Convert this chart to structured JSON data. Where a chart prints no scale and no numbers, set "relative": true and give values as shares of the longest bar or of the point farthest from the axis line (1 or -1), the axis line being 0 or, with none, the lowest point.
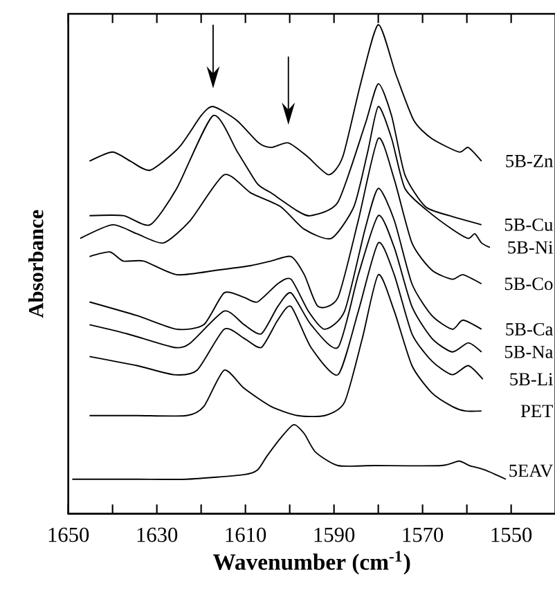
{
  "chart_data": {
    "type": "line",
    "xlabel": "Wavenumber (cm$^{-1}$)",
    "ylabel": "Absorbance",
    "relative": true,
    "legend": false,
    "marker": "none",
    "xlim": [
      1650,
      1540
    ],
    "xticks": [
      1650,
      {
        "value": 1640,
        "label": null
      },
      1630,
      {
        "value": 1620,
        "label": null
      },
      1610,
      {
        "value": 1600,
        "label": null
      },
      1590,
      {
        "value": 1580,
        "label": null
      },
      1570,
      {
        "value": 1560,
        "label": null
      },
      1550
    ],
    "series": [
      {
        "name": "5B-Zn",
        "color": "#000000",
        "x": [
          1645.2,
          1640,
          1636,
          1631.5,
          1625,
          1620,
          1617.3,
          1612,
          1607,
          1604.2,
          1600.3,
          1596,
          1591.2,
          1588,
          1584,
          1580,
          1576,
          1572,
          1568,
          1561.8,
          1559.7,
          1556.7
        ],
        "values": [
          0.7,
          0.72,
          0.7,
          0.68,
          0.73,
          0.8,
          0.82,
          0.79,
          0.74,
          0.73,
          0.74,
          0.71,
          0.67,
          0.71,
          0.87,
          1.0,
          0.89,
          0.79,
          0.75,
          0.72,
          0.73,
          0.7
        ]
      },
      {
        "name": "5B-Cu",
        "color": "#000000",
        "x": [
          1645.2,
          1637.6,
          1631.5,
          1625.5,
          1617.3,
          1611.8,
          1607.3,
          1604.2,
          1598.2,
          1595.2,
          1589.1,
          1583,
          1580,
          1577,
          1574,
          1569.4,
          1564,
          1556.7
        ],
        "values": [
          0.58,
          0.58,
          0.56,
          0.64,
          0.8,
          0.72,
          0.65,
          0.63,
          0.59,
          0.58,
          0.61,
          0.78,
          0.87,
          0.8,
          0.67,
          0.6,
          0.58,
          0.56
        ]
      },
      {
        "name": "5B-Ni",
        "color": "#000000",
        "x": [
          1647.3,
          1640,
          1634.5,
          1628.5,
          1622.4,
          1614.8,
          1608.8,
          1602.1,
          1596.7,
          1590.6,
          1585.5,
          1582.4,
          1580,
          1577,
          1574,
          1568.8,
          1563.3,
          1559.7,
          1558.2,
          1556.7,
          1554.8
        ],
        "values": [
          0.53,
          0.56,
          0.54,
          0.52,
          0.57,
          0.67,
          0.63,
          0.6,
          0.55,
          0.53,
          0.6,
          0.72,
          0.82,
          0.75,
          0.64,
          0.59,
          0.55,
          0.53,
          0.54,
          0.52,
          0.51
        ]
      },
      {
        "name": "5B-Co",
        "color": "#000000",
        "x": [
          1645.2,
          1640.6,
          1637.6,
          1633,
          1625.5,
          1616.4,
          1608.8,
          1604.2,
          1599.7,
          1596.7,
          1593.6,
          1589.1,
          1584.5,
          1580,
          1576.4,
          1572.4,
          1567.9,
          1563.3,
          1560.9,
          1556.7
        ],
        "values": [
          0.49,
          0.5,
          0.48,
          0.48,
          0.45,
          0.46,
          0.47,
          0.48,
          0.49,
          0.45,
          0.38,
          0.4,
          0.57,
          0.75,
          0.66,
          0.52,
          0.46,
          0.44,
          0.45,
          0.43
        ]
      },
      {
        "name": "5B-Ca",
        "color": "#000000",
        "x": [
          1645.2,
          1634.5,
          1625.5,
          1619.4,
          1614.8,
          1610.3,
          1607.3,
          1602.7,
          1599.7,
          1595.8,
          1592.1,
          1587.6,
          1583,
          1580,
          1576.4,
          1572.4,
          1567.9,
          1563.3,
          1560.9,
          1556.7
        ],
        "values": [
          0.39,
          0.36,
          0.33,
          0.34,
          0.41,
          0.4,
          0.39,
          0.43,
          0.44,
          0.37,
          0.33,
          0.37,
          0.55,
          0.64,
          0.57,
          0.43,
          0.36,
          0.33,
          0.35,
          0.33
        ]
      },
      {
        "name": "5B-Na",
        "color": "#000000",
        "x": [
          1645.2,
          1636.7,
          1626.1,
          1622.4,
          1614.8,
          1610.3,
          1606.4,
          1602.7,
          1599.7,
          1595.2,
          1589.1,
          1584.5,
          1580,
          1576.4,
          1572.4,
          1567.9,
          1563.3,
          1559.7,
          1556.7
        ],
        "values": [
          0.34,
          0.32,
          0.29,
          0.3,
          0.37,
          0.34,
          0.32,
          0.38,
          0.41,
          0.34,
          0.29,
          0.45,
          0.58,
          0.51,
          0.38,
          0.31,
          0.28,
          0.3,
          0.28
        ]
      },
      {
        "name": "5B-Li",
        "color": "#000000",
        "x": [
          1645.2,
          1634.5,
          1626.1,
          1620.9,
          1614.8,
          1610.3,
          1606.4,
          1602.7,
          1599.7,
          1595.2,
          1589.1,
          1584.5,
          1580,
          1576.4,
          1572.4,
          1567.9,
          1563.3,
          1559.7,
          1556.4
        ],
        "values": [
          0.27,
          0.25,
          0.23,
          0.24,
          0.33,
          0.31,
          0.29,
          0.35,
          0.38,
          0.29,
          0.23,
          0.37,
          0.52,
          0.45,
          0.32,
          0.26,
          0.23,
          0.25,
          0.22
        ]
      },
      {
        "name": "PET",
        "color": "#000000",
        "x": [
          1645.2,
          1634.5,
          1623.3,
          1619.4,
          1614.8,
          1610.3,
          1604.2,
          1598.2,
          1592.1,
          1587.6,
          1583.6,
          1580,
          1576.4,
          1572.4,
          1567.9,
          1563.3,
          1560.3,
          1556.7
        ],
        "values": [
          0.14,
          0.14,
          0.14,
          0.16,
          0.24,
          0.2,
          0.16,
          0.14,
          0.14,
          0.17,
          0.31,
          0.45,
          0.37,
          0.25,
          0.19,
          0.16,
          0.15,
          0.15
        ]
      },
      {
        "name": "5EAV",
        "color": "#000000",
        "x": [
          1649.1,
          1634.5,
          1623.3,
          1610.3,
          1607.3,
          1605.2,
          1602.1,
          1599.1,
          1596.7,
          1594.2,
          1589.1,
          1580.9,
          1565.8,
          1561.8,
          1559.4,
          1555.8,
          1551.2
        ],
        "values": [
          0.0,
          0.0,
          0.0,
          0.01,
          0.02,
          0.05,
          0.09,
          0.12,
          0.1,
          0.06,
          0.03,
          0.03,
          0.03,
          0.04,
          0.03,
          0.02,
          0.0
        ]
      }
    ]
  }
}
